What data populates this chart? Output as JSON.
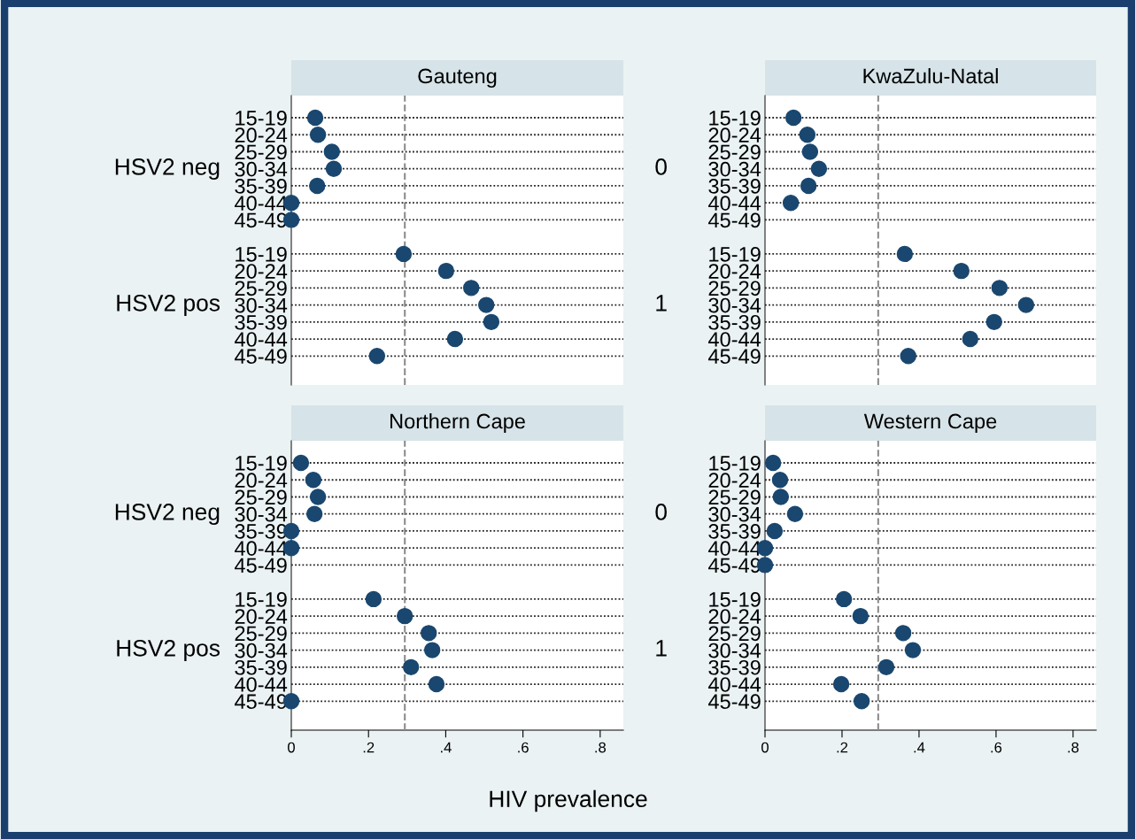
{
  "chart_data": [
    {
      "type": "scatter",
      "orientation": "horizontal",
      "title": "Gauteng",
      "categories": [
        "15-19",
        "20-24",
        "25-29",
        "30-34",
        "35-39",
        "40-44",
        "45-49",
        null,
        "15-19",
        "20-24",
        "25-29",
        "30-34",
        "35-39",
        "40-44",
        "45-49"
      ],
      "annotations": [
        "HSV2 neg",
        "HSV2 pos"
      ],
      "series": [
        {
          "color": "#1a476f",
          "values": [
            0.062,
            0.069,
            0.105,
            0.11,
            0.067,
            0,
            0,
            null,
            0.291,
            0.401,
            0.466,
            0.505,
            0.518,
            0.424,
            0.222
          ]
        }
      ],
      "xlim": [
        0,
        0.86
      ],
      "tick_labels": "y",
      "grid": "y",
      "marker": "circle",
      "ref_lines": [
        {
          "axis": "x",
          "value": 0.294,
          "color": "#8c8c8c",
          "line_style": "dashed"
        }
      ]
    },
    {
      "type": "scatter",
      "orientation": "horizontal",
      "title": "KwaZulu-Natal",
      "categories": [
        "15-19",
        "20-24",
        "25-29",
        "30-34",
        "35-39",
        "40-44",
        "45-49",
        null,
        "15-19",
        "20-24",
        "25-29",
        "30-34",
        "35-39",
        "40-44",
        "45-49"
      ],
      "annotations": [
        "0",
        "1"
      ],
      "series": [
        {
          "color": "#1a476f",
          "values": [
            0.074,
            0.11,
            0.117,
            0.14,
            0.113,
            0.067,
            null,
            null,
            0.363,
            0.51,
            0.609,
            0.678,
            0.595,
            0.533,
            0.372
          ]
        }
      ],
      "xlim": [
        0,
        0.86
      ],
      "tick_labels": "y",
      "grid": "y",
      "marker": "circle",
      "ref_lines": [
        {
          "axis": "x",
          "value": 0.294,
          "color": "#8c8c8c",
          "line_style": "dashed"
        }
      ]
    },
    {
      "type": "scatter",
      "orientation": "horizontal",
      "title": "Northern Cape",
      "xlabel": "HIV prevalence",
      "categories": [
        "15-19",
        "20-24",
        "25-29",
        "30-34",
        "35-39",
        "40-44",
        "45-49",
        null,
        "15-19",
        "20-24",
        "25-29",
        "30-34",
        "35-39",
        "40-44",
        "45-49"
      ],
      "annotations": [
        "HSV2 neg",
        "HSV2 pos"
      ],
      "series": [
        {
          "color": "#1a476f",
          "values": [
            0.025,
            0.057,
            0.069,
            0.06,
            0,
            0,
            null,
            null,
            0.213,
            0.294,
            0.356,
            0.365,
            0.31,
            0.376,
            0
          ]
        }
      ],
      "xlim": [
        0,
        0.86
      ],
      "xticks": [
        0,
        {
          "value": 0.2,
          "label": ".2"
        },
        {
          "value": 0.4,
          "label": ".4"
        },
        {
          "value": 0.6,
          "label": ".6"
        },
        {
          "value": 0.8,
          "label": ".8"
        }
      ],
      "grid": "y",
      "marker": "circle",
      "ref_lines": [
        {
          "axis": "x",
          "value": 0.294,
          "color": "#8c8c8c",
          "line_style": "dashed"
        }
      ]
    },
    {
      "type": "scatter",
      "orientation": "horizontal",
      "title": "Western Cape",
      "categories": [
        "15-19",
        "20-24",
        "25-29",
        "30-34",
        "35-39",
        "40-44",
        "45-49",
        null,
        "15-19",
        "20-24",
        "25-29",
        "30-34",
        "35-39",
        "40-44",
        "45-49"
      ],
      "annotations": [
        "0",
        "1"
      ],
      "series": [
        {
          "color": "#1a476f",
          "values": [
            0.021,
            0.039,
            0.041,
            0.078,
            0.025,
            0,
            0,
            null,
            0.205,
            0.248,
            0.359,
            0.384,
            0.315,
            0.198,
            0.251
          ]
        }
      ],
      "xlim": [
        0,
        0.86
      ],
      "xticks": [
        0,
        {
          "value": 0.2,
          "label": ".2"
        },
        {
          "value": 0.4,
          "label": ".4"
        },
        {
          "value": 0.6,
          "label": ".6"
        },
        {
          "value": 0.8,
          "label": ".8"
        }
      ],
      "grid": "y",
      "marker": "circle",
      "ref_lines": [
        {
          "axis": "x",
          "value": 0.294,
          "color": "#8c8c8c",
          "line_style": "dashed"
        }
      ]
    }
  ]
}
